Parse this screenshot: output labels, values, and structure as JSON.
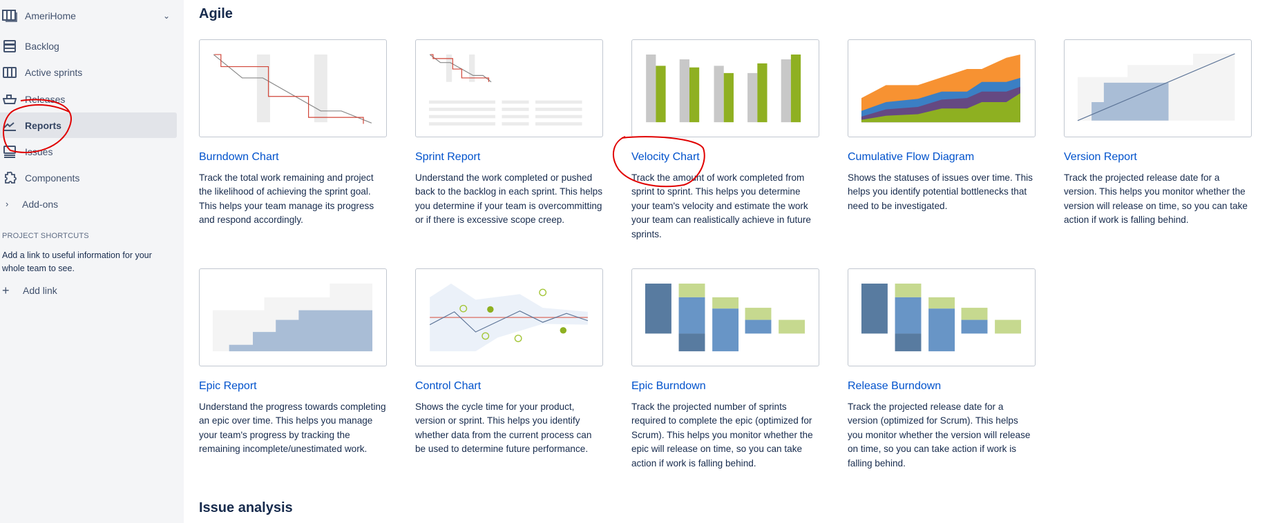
{
  "sidebar": {
    "project": {
      "name": "AmeriHome",
      "icon": "board-icon",
      "chevron": "chevron-down-icon"
    },
    "items": [
      {
        "label": "Backlog",
        "icon": "backlog-icon"
      },
      {
        "label": "Active sprints",
        "icon": "board-columns-icon"
      },
      {
        "label": "Releases",
        "icon": "ship-icon"
      },
      {
        "label": "Reports",
        "icon": "chart-trend-icon",
        "active": true
      },
      {
        "label": "Issues",
        "icon": "issues-icon"
      },
      {
        "label": "Components",
        "icon": "puzzle-icon"
      },
      {
        "label": "Add-ons",
        "icon": "chevron-right-icon"
      }
    ],
    "shortcuts_heading": "PROJECT SHORTCUTS",
    "shortcuts_text": "Add a link to useful information for your whole team to see.",
    "add_link": "Add link"
  },
  "sections": {
    "agile": "Agile",
    "issue_analysis": "Issue analysis"
  },
  "reports": [
    {
      "title": "Burndown Chart",
      "desc": "Track the total work remaining and project the likelihood of achieving the sprint goal. This helps your team manage its progress and respond accordingly."
    },
    {
      "title": "Sprint Report",
      "desc": "Understand the work completed or pushed back to the backlog in each sprint. This helps you determine if your team is overcommitting or if there is excessive scope creep."
    },
    {
      "title": "Velocity Chart",
      "desc": "Track the amount of work completed from sprint to sprint. This helps you determine your team's velocity and estimate the work your team can realistically achieve in future sprints."
    },
    {
      "title": "Cumulative Flow Diagram",
      "desc": "Shows the statuses of issues over time. This helps you identify potential bottlenecks that need to be investigated."
    },
    {
      "title": "Version Report",
      "desc": "Track the projected release date for a version. This helps you monitor whether the version will release on time, so you can take action if work is falling behind."
    },
    {
      "title": "Epic Report",
      "desc": "Understand the progress towards completing an epic over time. This helps you manage your team's progress by tracking the remaining incomplete/unestimated work."
    },
    {
      "title": "Control Chart",
      "desc": "Shows the cycle time for your product, version or sprint. This helps you identify whether data from the current process can be used to determine future performance."
    },
    {
      "title": "Epic Burndown",
      "desc": "Track the projected number of sprints required to complete the epic (optimized for Scrum). This helps you monitor whether the epic will release on time, so you can take action if work is falling behind."
    },
    {
      "title": "Release Burndown",
      "desc": "Track the projected release date for a version (optimized for Scrum). This helps you monitor whether the version will release on time, so you can take action if work is falling behind."
    }
  ],
  "colors": {
    "link": "#0052cc",
    "annotation": "#e00000",
    "sidebar_bg": "#f4f5f7",
    "active_bg": "#e2e4e9"
  }
}
